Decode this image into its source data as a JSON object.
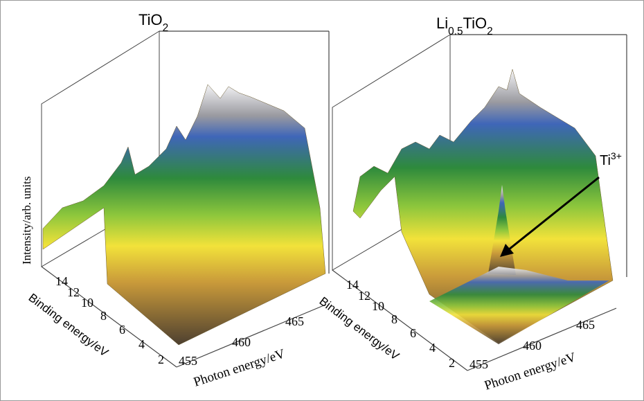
{
  "panels": [
    {
      "title": [
        {
          "text": "TiO"
        },
        {
          "text": "2",
          "sub": true
        }
      ],
      "y_axis_label": "Intensity/arb. units",
      "binding_axis": {
        "label": "Binding energy/eV",
        "ticks": [
          14,
          12,
          10,
          8,
          6,
          4,
          2
        ]
      },
      "photon_axis": {
        "label": "Photon energy/eV",
        "ticks": [
          455,
          460,
          465
        ]
      }
    },
    {
      "title": [
        {
          "text": "Li"
        },
        {
          "text": "0.5",
          "sub": true
        },
        {
          "text": "TiO"
        },
        {
          "text": "2",
          "sub": true
        }
      ],
      "binding_axis": {
        "label": "Binding energy/eV",
        "ticks": [
          14,
          12,
          10,
          8,
          6,
          4,
          2
        ]
      },
      "photon_axis": {
        "label": "Photon energy/eV",
        "ticks": [
          455,
          460,
          465
        ]
      }
    }
  ],
  "annotation": [
    {
      "text": "Ti"
    },
    {
      "text": "3+",
      "sup": true
    }
  ]
}
